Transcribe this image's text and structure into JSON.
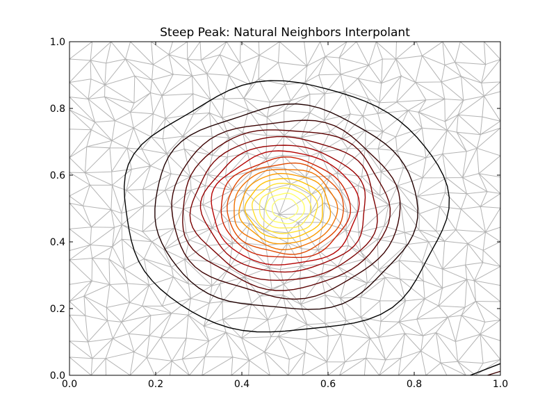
{
  "chart_data": {
    "type": "contour",
    "title": "Steep Peak: Natural Neighbors Interpolant",
    "xlabel": "",
    "ylabel": "",
    "xlim": [
      0.0,
      1.0
    ],
    "ylim": [
      0.0,
      1.0
    ],
    "xticks": [
      "0.0",
      "0.2",
      "0.4",
      "0.6",
      "0.8",
      "1.0"
    ],
    "yticks": [
      "0.0",
      "0.2",
      "0.4",
      "0.6",
      "0.8",
      "1.0"
    ],
    "grid": false,
    "legend": "none",
    "background": "triangulation mesh",
    "colors": {
      "mesh": "#b4b4b4",
      "axes": "#000000",
      "colormap": [
        "#000000",
        "#3a0000",
        "#6b0000",
        "#990000",
        "#c20000",
        "#e03000",
        "#f06000",
        "#fa9400",
        "#ffc400",
        "#ffe640",
        "#ffff70"
      ]
    },
    "peak_center": [
      0.5,
      0.5
    ],
    "contour_radii": [
      {
        "rx": 0.375,
        "ry": 0.375,
        "color": "#000000"
      },
      {
        "rx": 0.305,
        "ry": 0.305,
        "color": "#1f0000"
      },
      {
        "rx": 0.265,
        "ry": 0.265,
        "color": "#3a0000"
      },
      {
        "rx": 0.24,
        "ry": 0.24,
        "color": "#5a0000"
      },
      {
        "rx": 0.215,
        "ry": 0.215,
        "color": "#7a0000"
      },
      {
        "rx": 0.19,
        "ry": 0.19,
        "color": "#990000"
      },
      {
        "rx": 0.17,
        "ry": 0.17,
        "color": "#b50000"
      },
      {
        "rx": 0.15,
        "ry": 0.15,
        "color": "#cc2000"
      },
      {
        "rx": 0.135,
        "ry": 0.135,
        "color": "#e04a00"
      },
      {
        "rx": 0.12,
        "ry": 0.12,
        "color": "#f07000"
      },
      {
        "rx": 0.105,
        "ry": 0.105,
        "color": "#fa9a00"
      },
      {
        "rx": 0.09,
        "ry": 0.09,
        "color": "#ffc000"
      },
      {
        "rx": 0.075,
        "ry": 0.075,
        "color": "#ffe030"
      },
      {
        "rx": 0.06,
        "ry": 0.06,
        "color": "#ffee50"
      },
      {
        "rx": 0.045,
        "ry": 0.045,
        "color": "#ffff66"
      },
      {
        "rx": 0.03,
        "ry": 0.03,
        "color": "#ffff77"
      }
    ]
  }
}
